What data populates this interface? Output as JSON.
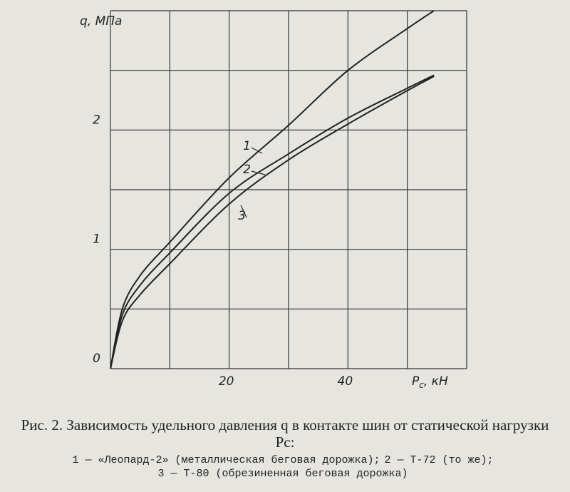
{
  "chart_data": {
    "type": "line",
    "ylabel": "q, МПа",
    "xlabel": {
      "symbol": "P",
      "sub": "с",
      "unit": ", кН"
    },
    "x": [
      0,
      2,
      5,
      10,
      20,
      30,
      40,
      50,
      54.5
    ],
    "series": [
      {
        "name": "1",
        "color": "#222",
        "values": [
          0,
          0.5,
          0.78,
          1.06,
          1.6,
          2.04,
          2.5,
          2.85,
          3.0
        ]
      },
      {
        "name": "2",
        "color": "#222",
        "values": [
          0,
          0.45,
          0.7,
          0.97,
          1.47,
          1.8,
          2.1,
          2.35,
          2.46
        ]
      },
      {
        "name": "3",
        "color": "#222",
        "values": [
          0,
          0.4,
          0.62,
          0.88,
          1.38,
          1.75,
          2.05,
          2.33,
          2.45
        ]
      }
    ],
    "xlim": [
      0,
      60
    ],
    "ylim": [
      0,
      3
    ],
    "xticks": [
      20,
      40
    ],
    "yticks": [
      0,
      1,
      2
    ],
    "xgrid": [
      0,
      10,
      20,
      30,
      40,
      50,
      60
    ],
    "ygrid": [
      0,
      0.5,
      1,
      1.5,
      2,
      2.5,
      3
    ],
    "grid": true
  },
  "caption": {
    "title": "Рис. 2. Зависимость удельного давления q в контакте шин от статической нагрузки Pс:",
    "notes": [
      "1 — «Леопард-2» (металлическая беговая дорожка);",
      "2 — Т-72 (то же);",
      "3 — Т-80 (обрезиненная беговая дорожка)"
    ]
  }
}
